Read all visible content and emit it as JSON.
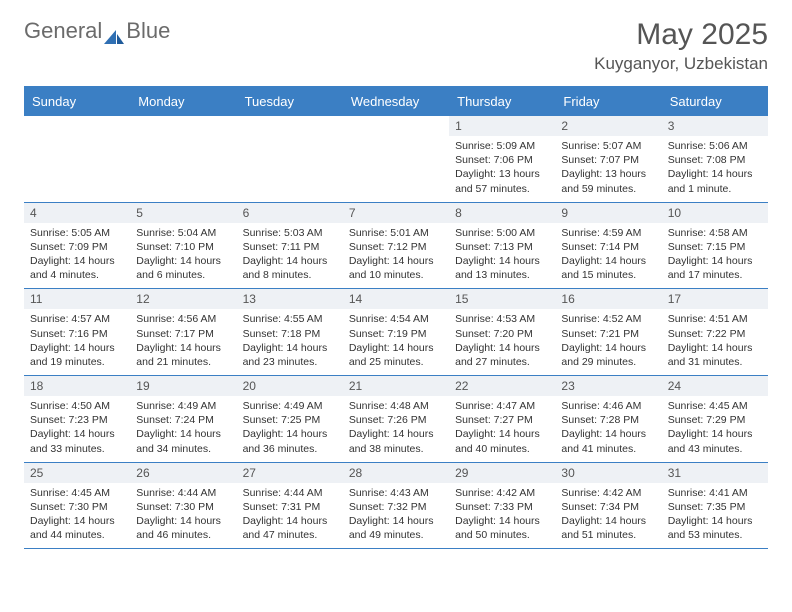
{
  "brand": {
    "text1": "General",
    "text2": "Blue",
    "color_gray": "#808080",
    "color_blue": "#2f6fb3"
  },
  "header": {
    "month": "May 2025",
    "location": "Kuyganyor, Uzbekistan"
  },
  "theme": {
    "header_bg": "#3b7fc4",
    "daynum_bg": "#eef1f5",
    "rule_color": "#3b7fc4",
    "text_color": "#333333",
    "muted_color": "#555555"
  },
  "daysOfWeek": [
    "Sunday",
    "Monday",
    "Tuesday",
    "Wednesday",
    "Thursday",
    "Friday",
    "Saturday"
  ],
  "weeks": [
    [
      null,
      null,
      null,
      null,
      {
        "n": 1,
        "sr": "5:09 AM",
        "ss": "7:06 PM",
        "dl": "13 hours and 57 minutes."
      },
      {
        "n": 2,
        "sr": "5:07 AM",
        "ss": "7:07 PM",
        "dl": "13 hours and 59 minutes."
      },
      {
        "n": 3,
        "sr": "5:06 AM",
        "ss": "7:08 PM",
        "dl": "14 hours and 1 minute."
      }
    ],
    [
      {
        "n": 4,
        "sr": "5:05 AM",
        "ss": "7:09 PM",
        "dl": "14 hours and 4 minutes."
      },
      {
        "n": 5,
        "sr": "5:04 AM",
        "ss": "7:10 PM",
        "dl": "14 hours and 6 minutes."
      },
      {
        "n": 6,
        "sr": "5:03 AM",
        "ss": "7:11 PM",
        "dl": "14 hours and 8 minutes."
      },
      {
        "n": 7,
        "sr": "5:01 AM",
        "ss": "7:12 PM",
        "dl": "14 hours and 10 minutes."
      },
      {
        "n": 8,
        "sr": "5:00 AM",
        "ss": "7:13 PM",
        "dl": "14 hours and 13 minutes."
      },
      {
        "n": 9,
        "sr": "4:59 AM",
        "ss": "7:14 PM",
        "dl": "14 hours and 15 minutes."
      },
      {
        "n": 10,
        "sr": "4:58 AM",
        "ss": "7:15 PM",
        "dl": "14 hours and 17 minutes."
      }
    ],
    [
      {
        "n": 11,
        "sr": "4:57 AM",
        "ss": "7:16 PM",
        "dl": "14 hours and 19 minutes."
      },
      {
        "n": 12,
        "sr": "4:56 AM",
        "ss": "7:17 PM",
        "dl": "14 hours and 21 minutes."
      },
      {
        "n": 13,
        "sr": "4:55 AM",
        "ss": "7:18 PM",
        "dl": "14 hours and 23 minutes."
      },
      {
        "n": 14,
        "sr": "4:54 AM",
        "ss": "7:19 PM",
        "dl": "14 hours and 25 minutes."
      },
      {
        "n": 15,
        "sr": "4:53 AM",
        "ss": "7:20 PM",
        "dl": "14 hours and 27 minutes."
      },
      {
        "n": 16,
        "sr": "4:52 AM",
        "ss": "7:21 PM",
        "dl": "14 hours and 29 minutes."
      },
      {
        "n": 17,
        "sr": "4:51 AM",
        "ss": "7:22 PM",
        "dl": "14 hours and 31 minutes."
      }
    ],
    [
      {
        "n": 18,
        "sr": "4:50 AM",
        "ss": "7:23 PM",
        "dl": "14 hours and 33 minutes."
      },
      {
        "n": 19,
        "sr": "4:49 AM",
        "ss": "7:24 PM",
        "dl": "14 hours and 34 minutes."
      },
      {
        "n": 20,
        "sr": "4:49 AM",
        "ss": "7:25 PM",
        "dl": "14 hours and 36 minutes."
      },
      {
        "n": 21,
        "sr": "4:48 AM",
        "ss": "7:26 PM",
        "dl": "14 hours and 38 minutes."
      },
      {
        "n": 22,
        "sr": "4:47 AM",
        "ss": "7:27 PM",
        "dl": "14 hours and 40 minutes."
      },
      {
        "n": 23,
        "sr": "4:46 AM",
        "ss": "7:28 PM",
        "dl": "14 hours and 41 minutes."
      },
      {
        "n": 24,
        "sr": "4:45 AM",
        "ss": "7:29 PM",
        "dl": "14 hours and 43 minutes."
      }
    ],
    [
      {
        "n": 25,
        "sr": "4:45 AM",
        "ss": "7:30 PM",
        "dl": "14 hours and 44 minutes."
      },
      {
        "n": 26,
        "sr": "4:44 AM",
        "ss": "7:30 PM",
        "dl": "14 hours and 46 minutes."
      },
      {
        "n": 27,
        "sr": "4:44 AM",
        "ss": "7:31 PM",
        "dl": "14 hours and 47 minutes."
      },
      {
        "n": 28,
        "sr": "4:43 AM",
        "ss": "7:32 PM",
        "dl": "14 hours and 49 minutes."
      },
      {
        "n": 29,
        "sr": "4:42 AM",
        "ss": "7:33 PM",
        "dl": "14 hours and 50 minutes."
      },
      {
        "n": 30,
        "sr": "4:42 AM",
        "ss": "7:34 PM",
        "dl": "14 hours and 51 minutes."
      },
      {
        "n": 31,
        "sr": "4:41 AM",
        "ss": "7:35 PM",
        "dl": "14 hours and 53 minutes."
      }
    ]
  ],
  "labels": {
    "sunrise": "Sunrise:",
    "sunset": "Sunset:",
    "daylight": "Daylight:"
  }
}
